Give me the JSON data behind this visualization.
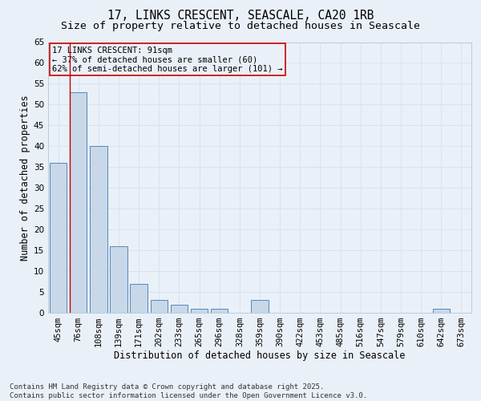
{
  "title_line1": "17, LINKS CRESCENT, SEASCALE, CA20 1RB",
  "title_line2": "Size of property relative to detached houses in Seascale",
  "xlabel": "Distribution of detached houses by size in Seascale",
  "ylabel": "Number of detached properties",
  "categories": [
    "45sqm",
    "76sqm",
    "108sqm",
    "139sqm",
    "171sqm",
    "202sqm",
    "233sqm",
    "265sqm",
    "296sqm",
    "328sqm",
    "359sqm",
    "390sqm",
    "422sqm",
    "453sqm",
    "485sqm",
    "516sqm",
    "547sqm",
    "579sqm",
    "610sqm",
    "642sqm",
    "673sqm"
  ],
  "values": [
    36,
    53,
    40,
    16,
    7,
    3,
    2,
    1,
    1,
    0,
    3,
    0,
    0,
    0,
    0,
    0,
    0,
    0,
    0,
    1,
    0
  ],
  "bar_color": "#c8d8e8",
  "bar_edge_color": "#5588bb",
  "grid_color": "#d4e4f0",
  "background_color": "#eaf0f8",
  "vline_x_index": 1,
  "vline_color": "#cc0000",
  "annotation_text": "17 LINKS CRESCENT: 91sqm\n← 37% of detached houses are smaller (60)\n62% of semi-detached houses are larger (101) →",
  "annotation_box_color": "#cc0000",
  "ylim": [
    0,
    65
  ],
  "yticks": [
    0,
    5,
    10,
    15,
    20,
    25,
    30,
    35,
    40,
    45,
    50,
    55,
    60,
    65
  ],
  "footer_text": "Contains HM Land Registry data © Crown copyright and database right 2025.\nContains public sector information licensed under the Open Government Licence v3.0.",
  "title_fontsize": 10.5,
  "subtitle_fontsize": 9.5,
  "axis_label_fontsize": 8.5,
  "tick_fontsize": 7.5,
  "annotation_fontsize": 7.5,
  "footer_fontsize": 6.5
}
